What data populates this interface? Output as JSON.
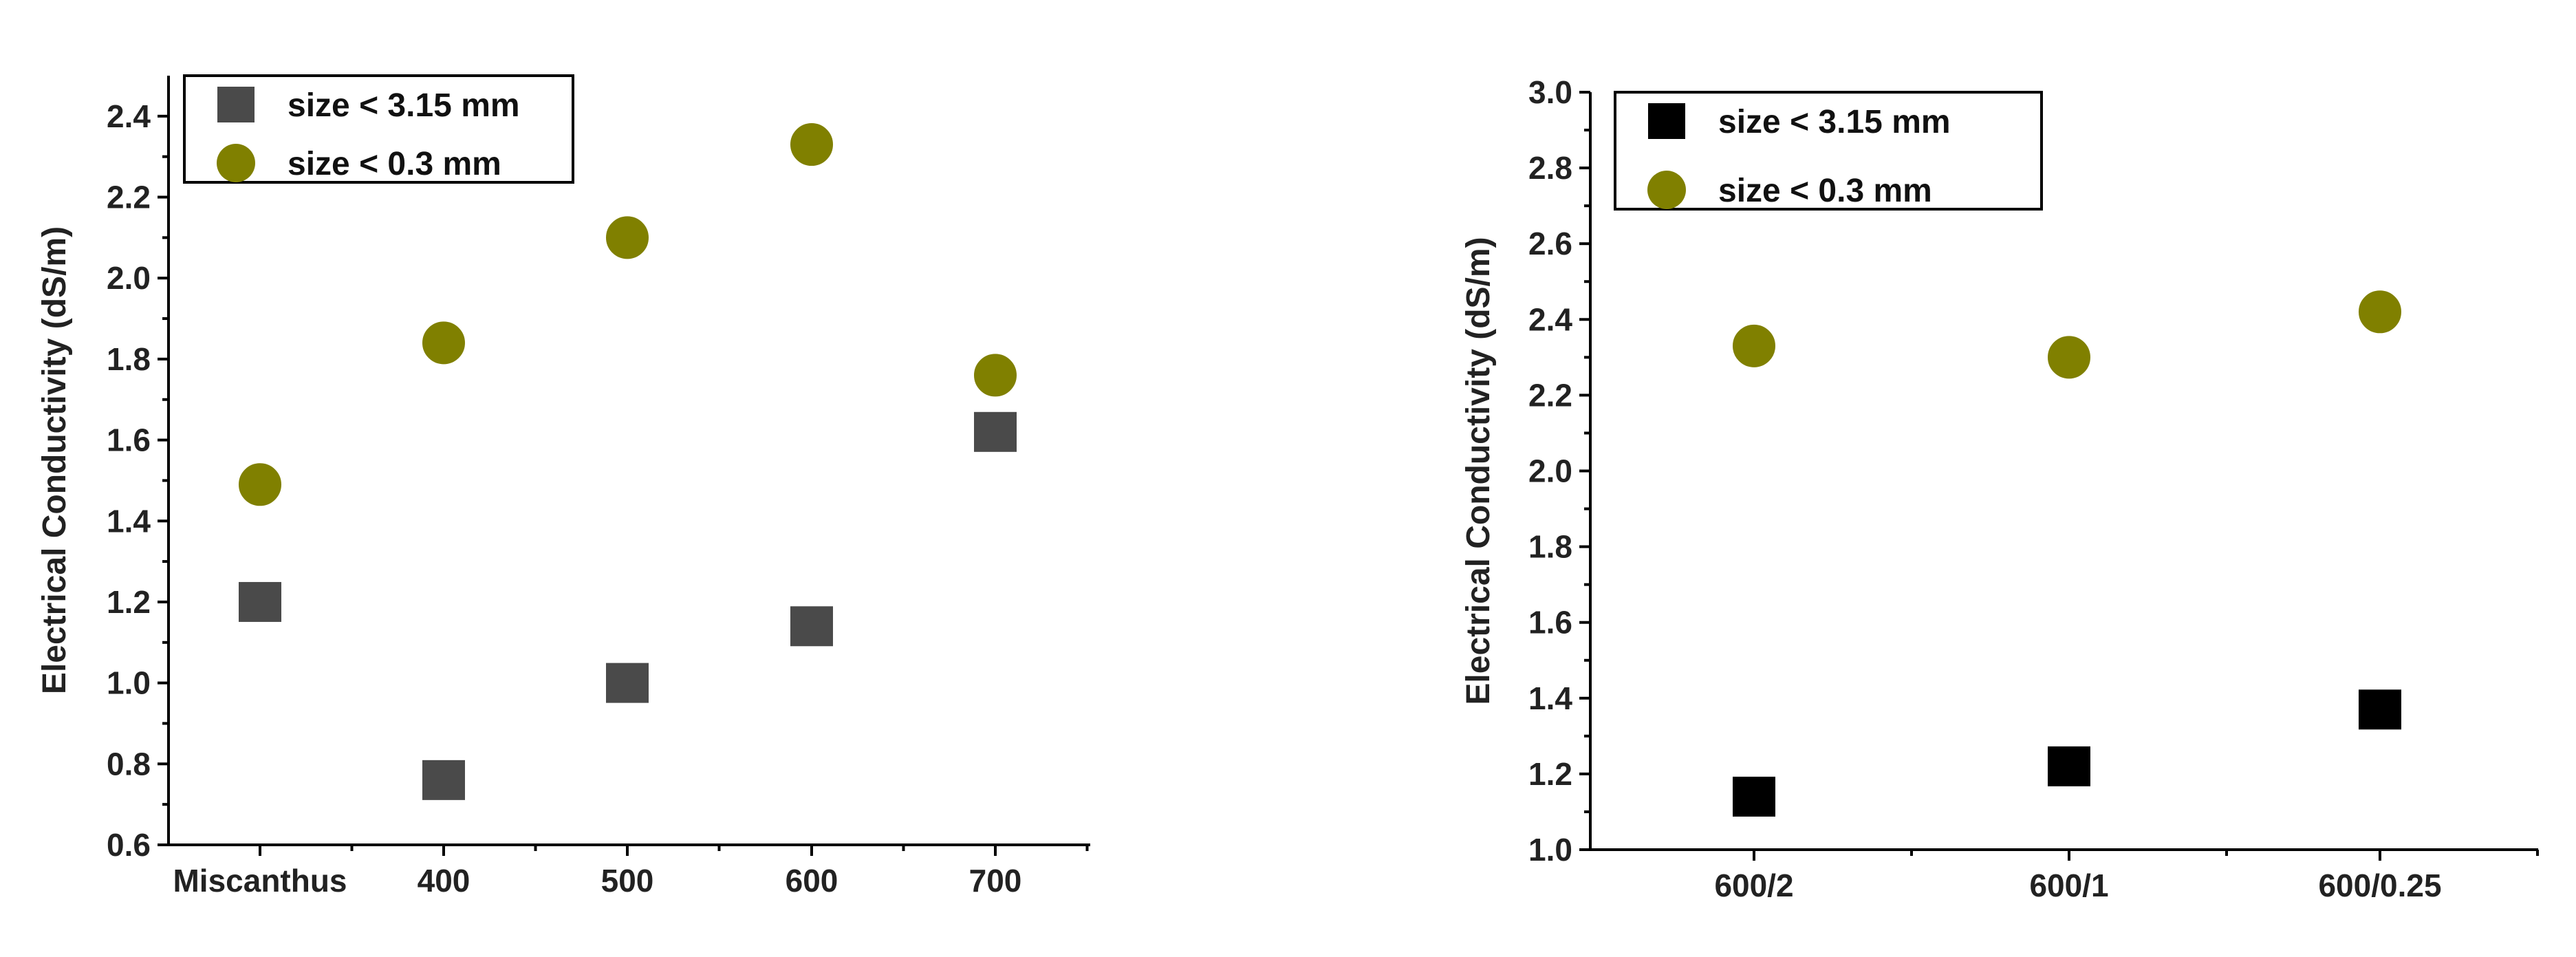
{
  "chart_data": [
    {
      "type": "scatter",
      "title": "",
      "xlabel": "",
      "ylabel": "Electrical Conductivity (dS/m)",
      "categories": [
        "Miscanthus",
        "400",
        "500",
        "600",
        "700"
      ],
      "ylim": [
        0.6,
        2.5
      ],
      "yticks": [
        0.6,
        0.8,
        1.0,
        1.2,
        1.4,
        1.6,
        1.8,
        2.0,
        2.2,
        2.4
      ],
      "ytick_labels": [
        "0.6",
        "0.8",
        "1.0",
        "1.2",
        "1.4",
        "1.6",
        "1.8",
        "2.0",
        "2.2",
        "2.4"
      ],
      "grid": false,
      "legend": "top-left",
      "series": [
        {
          "name": "size < 3.15 mm",
          "marker": "square",
          "color": "#4a4a4a",
          "values": [
            1.2,
            0.76,
            1.0,
            1.14,
            1.62
          ]
        },
        {
          "name": "size < 0.3 mm",
          "marker": "circle",
          "color": "#808000",
          "values": [
            1.49,
            1.84,
            2.1,
            2.33,
            1.76
          ]
        }
      ]
    },
    {
      "type": "scatter",
      "title": "",
      "xlabel": "",
      "ylabel": "Electrical Conductivity (dS/m)",
      "categories": [
        "600/2",
        "600/1",
        "600/0.25"
      ],
      "ylim": [
        1.0,
        3.0
      ],
      "yticks": [
        1.0,
        1.2,
        1.4,
        1.6,
        1.8,
        2.0,
        2.2,
        2.4,
        2.6,
        2.8,
        3.0
      ],
      "ytick_labels": [
        "1.0",
        "1.2",
        "1.4",
        "1.6",
        "1.8",
        "2.0",
        "2.2",
        "2.4",
        "2.6",
        "2.8",
        "3.0"
      ],
      "grid": false,
      "legend": "top-left",
      "series": [
        {
          "name": "size < 3.15 mm",
          "marker": "square",
          "color": "#000000",
          "values": [
            1.14,
            1.22,
            1.37
          ]
        },
        {
          "name": "size < 0.3 mm",
          "marker": "circle",
          "color": "#808000",
          "values": [
            2.33,
            2.3,
            2.42
          ]
        }
      ]
    }
  ]
}
